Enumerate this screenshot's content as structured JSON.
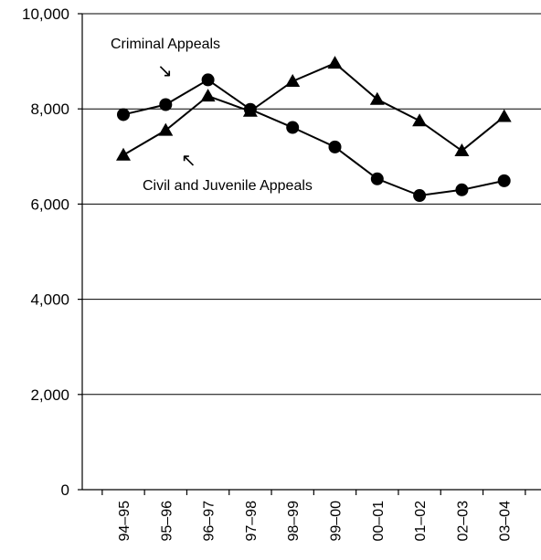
{
  "chart_data": {
    "type": "line",
    "title": "",
    "xlabel": "",
    "ylabel": "",
    "categories": [
      "94–95",
      "95–96",
      "96–97",
      "97–98",
      "98–99",
      "99–00",
      "00–01",
      "01–02",
      "02–03",
      "03–04"
    ],
    "ylim": [
      0,
      10000
    ],
    "yticks": [
      0,
      2000,
      4000,
      6000,
      8000,
      10000
    ],
    "ytick_labels": [
      "0",
      "2,000",
      "4,000",
      "6,000",
      "8,000",
      "10,000"
    ],
    "grid": true,
    "series": [
      {
        "name": "Criminal Appeals",
        "marker": "triangle",
        "values": [
          7030,
          7550,
          8270,
          7950,
          8580,
          8960,
          8200,
          7750,
          7120,
          7840
        ]
      },
      {
        "name": "Civil and Juvenile Appeals",
        "marker": "circle",
        "values": [
          7880,
          8090,
          8610,
          7990,
          7610,
          7200,
          6530,
          6180,
          6300,
          6490
        ]
      }
    ],
    "annotations": [
      {
        "text": "Criminal Appeals",
        "arrow": "↘"
      },
      {
        "text": "Civil and Juvenile Appeals",
        "arrow": "↖"
      }
    ]
  }
}
